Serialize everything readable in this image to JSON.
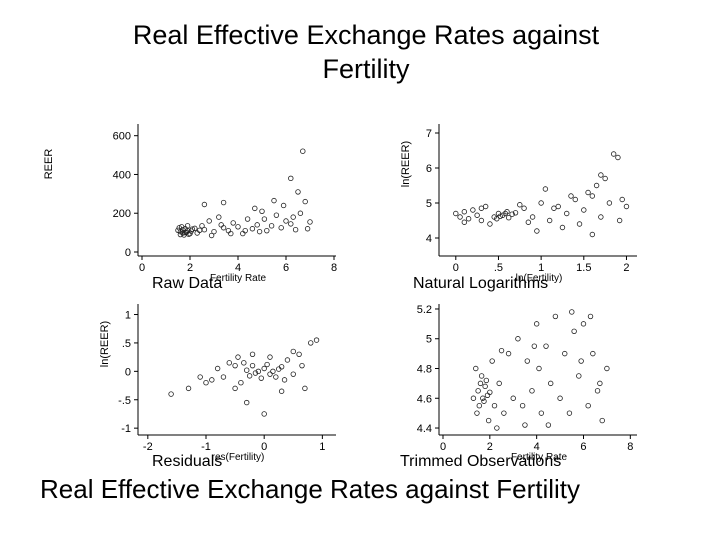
{
  "slide": {
    "title_line1": "Real Effective Exchange Rates against",
    "title_line2": "Fertility",
    "footer": "Real Effective Exchange Rates against Fertility"
  },
  "chart_data": [
    {
      "type": "scatter",
      "title": "Raw Data",
      "xlabel": "Fertility Rate",
      "ylabel": "REER",
      "xlim": [
        0,
        8
      ],
      "ylim": [
        0,
        650
      ],
      "xticks": [
        "0",
        "2",
        "4",
        "6",
        "8"
      ],
      "yticks": [
        "0",
        "200",
        "400",
        "600"
      ],
      "xtick_values": [
        0,
        2,
        4,
        6,
        8
      ],
      "ytick_values": [
        0,
        200,
        400,
        600
      ],
      "grid": false,
      "marker": "hollow-circle",
      "points": [
        [
          1.6,
          105
        ],
        [
          1.7,
          98
        ],
        [
          1.8,
          120
        ],
        [
          1.9,
          110
        ],
        [
          2.0,
          95
        ],
        [
          1.5,
          112
        ],
        [
          1.65,
          130
        ],
        [
          1.75,
          88
        ],
        [
          1.85,
          102
        ],
        [
          2.1,
          118
        ],
        [
          1.55,
          125
        ],
        [
          1.95,
          92
        ],
        [
          2.05,
          108
        ],
        [
          1.7,
          115
        ],
        [
          1.8,
          100
        ],
        [
          1.6,
          90
        ],
        [
          2.2,
          122
        ],
        [
          1.9,
          135
        ],
        [
          2.3,
          98
        ],
        [
          2.4,
          112
        ],
        [
          2.6,
          115
        ],
        [
          2.8,
          160
        ],
        [
          3.0,
          105
        ],
        [
          3.2,
          180
        ],
        [
          3.4,
          125
        ],
        [
          3.6,
          110
        ],
        [
          3.8,
          150
        ],
        [
          4.0,
          130
        ],
        [
          4.2,
          95
        ],
        [
          4.4,
          170
        ],
        [
          4.6,
          120
        ],
        [
          4.8,
          140
        ],
        [
          5.0,
          210
        ],
        [
          5.2,
          110
        ],
        [
          5.4,
          135
        ],
        [
          5.6,
          190
        ],
        [
          5.8,
          125
        ],
        [
          6.0,
          160
        ],
        [
          6.2,
          145
        ],
        [
          6.4,
          115
        ],
        [
          6.6,
          200
        ],
        [
          6.8,
          260
        ],
        [
          6.5,
          310
        ],
        [
          6.7,
          520
        ],
        [
          6.2,
          380
        ],
        [
          5.5,
          265
        ],
        [
          4.7,
          225
        ],
        [
          3.4,
          255
        ],
        [
          2.6,
          245
        ],
        [
          7.0,
          155
        ],
        [
          6.3,
          180
        ],
        [
          5.9,
          240
        ],
        [
          4.3,
          110
        ],
        [
          3.7,
          95
        ],
        [
          2.9,
          85
        ],
        [
          2.5,
          135
        ],
        [
          5.1,
          170
        ],
        [
          6.9,
          120
        ],
        [
          4.9,
          105
        ],
        [
          3.3,
          140
        ]
      ]
    },
    {
      "type": "scatter",
      "title": "Natural Logarithms",
      "xlabel": "ln(Fertility)",
      "ylabel": "ln(REER)",
      "xlim": [
        -0.15,
        2.1
      ],
      "ylim": [
        3.6,
        7.2
      ],
      "xticks": [
        "0",
        ".5",
        "1",
        "1.5",
        "2"
      ],
      "yticks": [
        "4",
        "5",
        "6",
        "7"
      ],
      "xtick_values": [
        0,
        0.5,
        1,
        1.5,
        2
      ],
      "ytick_values": [
        4,
        5,
        6,
        7
      ],
      "grid": false,
      "marker": "hollow-circle",
      "points": [
        [
          0.45,
          4.6
        ],
        [
          0.5,
          4.7
        ],
        [
          0.55,
          4.65
        ],
        [
          0.6,
          4.75
        ],
        [
          0.48,
          4.55
        ],
        [
          0.52,
          4.62
        ],
        [
          0.58,
          4.7
        ],
        [
          0.62,
          4.58
        ],
        [
          0.66,
          4.68
        ],
        [
          0.7,
          4.72
        ],
        [
          0.0,
          4.7
        ],
        [
          0.05,
          4.6
        ],
        [
          0.1,
          4.75
        ],
        [
          0.15,
          4.55
        ],
        [
          0.2,
          4.8
        ],
        [
          0.25,
          4.65
        ],
        [
          0.3,
          4.5
        ],
        [
          0.35,
          4.9
        ],
        [
          0.4,
          4.4
        ],
        [
          0.8,
          4.85
        ],
        [
          0.9,
          4.6
        ],
        [
          1.0,
          5.0
        ],
        [
          1.1,
          4.5
        ],
        [
          1.2,
          4.9
        ],
        [
          1.3,
          4.7
        ],
        [
          1.4,
          5.1
        ],
        [
          1.5,
          4.8
        ],
        [
          1.6,
          5.2
        ],
        [
          1.7,
          4.6
        ],
        [
          1.8,
          5.0
        ],
        [
          1.85,
          6.4
        ],
        [
          1.9,
          6.3
        ],
        [
          1.75,
          5.7
        ],
        [
          1.65,
          5.5
        ],
        [
          1.55,
          5.3
        ],
        [
          1.45,
          4.4
        ],
        [
          1.35,
          5.2
        ],
        [
          1.25,
          4.3
        ],
        [
          1.05,
          5.4
        ],
        [
          0.95,
          4.2
        ],
        [
          1.95,
          5.1
        ],
        [
          2.0,
          4.9
        ],
        [
          1.92,
          4.5
        ],
        [
          1.7,
          5.8
        ],
        [
          1.6,
          4.1
        ],
        [
          0.75,
          4.95
        ],
        [
          0.85,
          4.45
        ],
        [
          0.3,
          4.85
        ],
        [
          0.1,
          4.45
        ],
        [
          1.15,
          4.85
        ]
      ]
    },
    {
      "type": "scatter",
      "title": "Residuals",
      "xlabel": "res(Fertility)",
      "ylabel": "ln(REER)",
      "xlim": [
        -2.1,
        1.2
      ],
      "ylim": [
        -1.05,
        1.15
      ],
      "xticks": [
        "-2",
        "-1",
        "0",
        "1"
      ],
      "yticks": [
        "-1",
        "-.5",
        "0",
        ".5",
        "1"
      ],
      "xtick_values": [
        -2,
        -1,
        0,
        1
      ],
      "ytick_values": [
        -1,
        -0.5,
        0,
        0.5,
        1
      ],
      "grid": false,
      "marker": "hollow-circle",
      "points": [
        [
          -0.1,
          0.0
        ],
        [
          0.0,
          0.05
        ],
        [
          0.1,
          -0.05
        ],
        [
          -0.2,
          0.1
        ],
        [
          0.2,
          -0.1
        ],
        [
          -0.3,
          0.02
        ],
        [
          0.3,
          0.08
        ],
        [
          -0.05,
          -0.12
        ],
        [
          0.05,
          0.12
        ],
        [
          0.15,
          0.0
        ],
        [
          -0.15,
          -0.03
        ],
        [
          0.25,
          0.04
        ],
        [
          -0.25,
          -0.08
        ],
        [
          -0.35,
          0.15
        ],
        [
          0.35,
          -0.15
        ],
        [
          -0.4,
          -0.2
        ],
        [
          0.4,
          0.2
        ],
        [
          -0.5,
          0.1
        ],
        [
          0.5,
          -0.05
        ],
        [
          -0.6,
          0.15
        ],
        [
          -0.7,
          -0.1
        ],
        [
          -0.8,
          0.05
        ],
        [
          -0.9,
          -0.15
        ],
        [
          -1.0,
          -0.2
        ],
        [
          -1.1,
          -0.1
        ],
        [
          -1.3,
          -0.3
        ],
        [
          -1.6,
          -0.4
        ],
        [
          -0.3,
          -0.55
        ],
        [
          0.0,
          -0.75
        ],
        [
          0.6,
          0.3
        ],
        [
          0.8,
          0.5
        ],
        [
          0.9,
          0.55
        ],
        [
          0.7,
          -0.3
        ],
        [
          0.5,
          0.35
        ],
        [
          0.3,
          -0.35
        ],
        [
          -0.2,
          0.3
        ],
        [
          -0.5,
          -0.3
        ],
        [
          0.1,
          0.25
        ],
        [
          -0.45,
          0.25
        ],
        [
          0.65,
          0.1
        ]
      ]
    },
    {
      "type": "scatter",
      "title": "Trimmed Observations",
      "xlabel": "Fertility Rate",
      "ylabel": "",
      "xlim": [
        0,
        8.2
      ],
      "ylim": [
        4.38,
        5.22
      ],
      "xticks": [
        "0",
        "2",
        "4",
        "6",
        "8"
      ],
      "yticks": [
        "4.4",
        "4.6",
        "4.8",
        "5",
        "5.2"
      ],
      "xtick_values": [
        0,
        2,
        4,
        6,
        8
      ],
      "ytick_values": [
        4.4,
        4.6,
        4.8,
        5.0,
        5.2
      ],
      "grid": false,
      "marker": "hollow-circle",
      "points": [
        [
          1.5,
          4.65
        ],
        [
          1.6,
          4.7
        ],
        [
          1.7,
          4.6
        ],
        [
          1.8,
          4.68
        ],
        [
          1.9,
          4.62
        ],
        [
          1.55,
          4.55
        ],
        [
          1.65,
          4.75
        ],
        [
          1.75,
          4.58
        ],
        [
          1.85,
          4.72
        ],
        [
          2.0,
          4.64
        ],
        [
          1.4,
          4.8
        ],
        [
          1.45,
          4.5
        ],
        [
          1.95,
          4.45
        ],
        [
          2.1,
          4.85
        ],
        [
          2.2,
          4.55
        ],
        [
          2.4,
          4.7
        ],
        [
          2.6,
          4.5
        ],
        [
          2.8,
          4.9
        ],
        [
          3.0,
          4.6
        ],
        [
          3.2,
          5.0
        ],
        [
          3.4,
          4.55
        ],
        [
          3.6,
          4.85
        ],
        [
          3.8,
          4.65
        ],
        [
          4.0,
          5.1
        ],
        [
          4.2,
          4.5
        ],
        [
          4.4,
          4.95
        ],
        [
          4.6,
          4.7
        ],
        [
          4.8,
          5.15
        ],
        [
          5.0,
          4.6
        ],
        [
          5.2,
          4.9
        ],
        [
          5.4,
          4.5
        ],
        [
          5.6,
          5.05
        ],
        [
          5.8,
          4.75
        ],
        [
          6.0,
          5.1
        ],
        [
          6.2,
          4.55
        ],
        [
          6.4,
          4.9
        ],
        [
          6.6,
          4.65
        ],
        [
          6.8,
          4.45
        ],
        [
          7.0,
          4.8
        ],
        [
          5.5,
          5.18
        ],
        [
          4.5,
          4.42
        ],
        [
          3.5,
          4.42
        ],
        [
          2.5,
          4.92
        ],
        [
          6.3,
          5.15
        ],
        [
          4.1,
          4.8
        ],
        [
          1.3,
          4.6
        ],
        [
          2.3,
          4.4
        ],
        [
          5.9,
          4.85
        ],
        [
          3.9,
          4.95
        ],
        [
          6.7,
          4.7
        ]
      ]
    }
  ]
}
